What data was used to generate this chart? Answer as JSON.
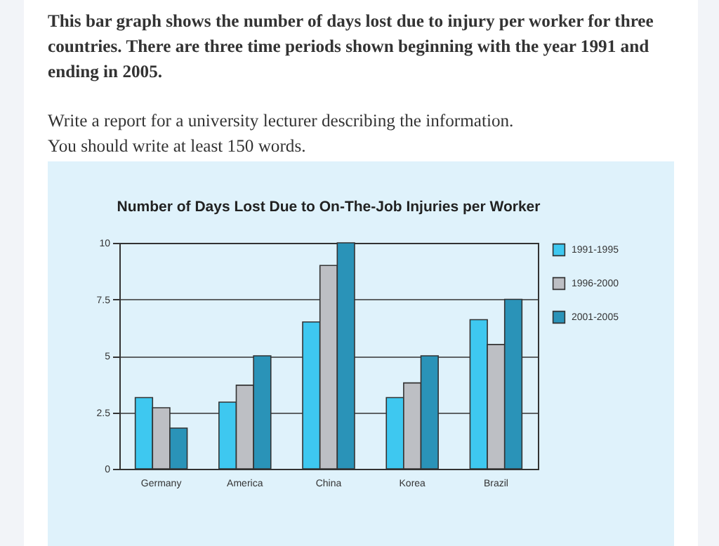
{
  "chart_data": {
    "type": "bar",
    "title": "Number of Days Lost Due to On-The-Job Injuries per Worker",
    "annotations": [
      "This bar graph shows the number of days lost due to injury per worker for three countries. There are three time periods shown beginning with the year 1991 and ending in 2005.",
      "Write a report for a university lecturer describing the information.",
      "You should write at least 150 words."
    ],
    "categories": [
      "Germany",
      "America",
      "China",
      "Korea",
      "Brazil"
    ],
    "series": [
      {
        "name": "1991-1995",
        "color": "#3ec8f0",
        "values": [
          3.15,
          2.95,
          6.5,
          3.15,
          6.6
        ]
      },
      {
        "name": "1996-2000",
        "color": "#bdbfc4",
        "values": [
          2.7,
          3.7,
          9.0,
          3.8,
          5.5
        ]
      },
      {
        "name": "2001-2005",
        "color": "#2a93b8",
        "values": [
          1.8,
          5.0,
          10.0,
          5.0,
          7.5
        ]
      }
    ],
    "ylim": [
      0,
      10
    ],
    "yticks": [
      0,
      {
        "value": 2.5,
        "label": "2.5"
      },
      5,
      {
        "value": 7.5,
        "label": "7.5"
      },
      10
    ],
    "grid": "y",
    "legend": "right"
  }
}
